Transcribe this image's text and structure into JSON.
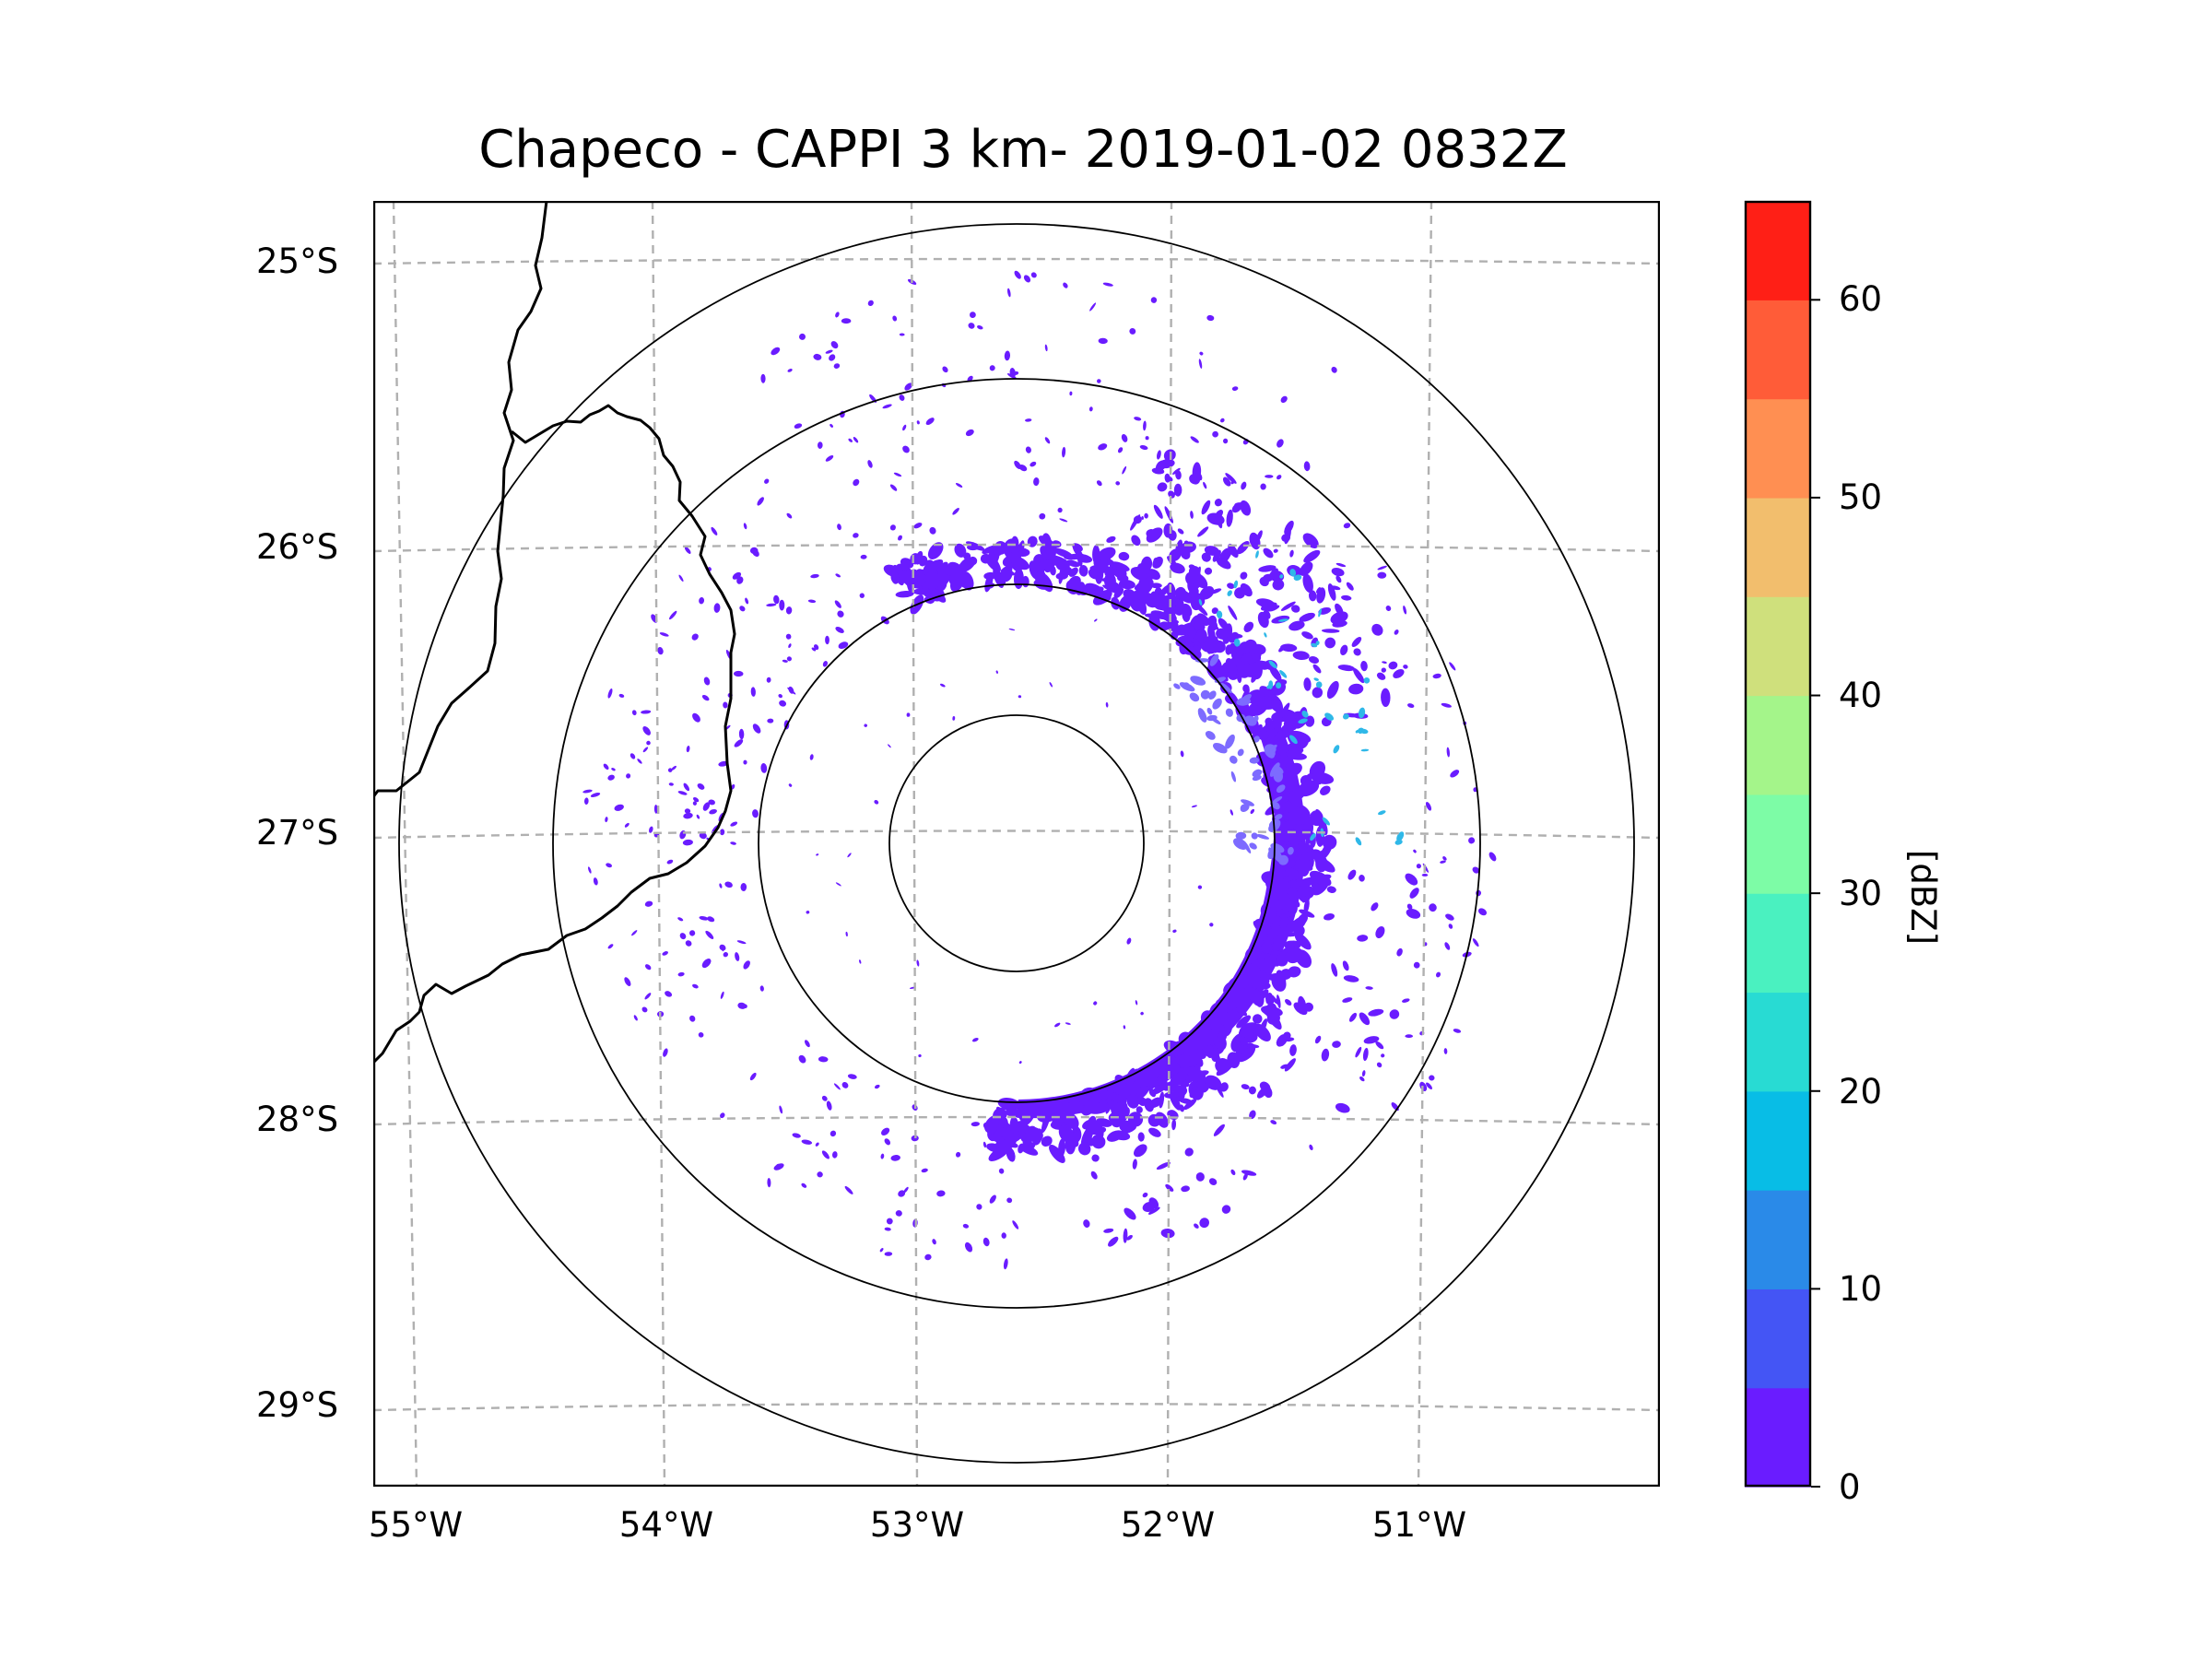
{
  "title": "Chapeco - CAPPI 3 km- 2019-01-02 0832Z",
  "lat_labels": [
    "25°S",
    "26°S",
    "27°S",
    "28°S",
    "29°S"
  ],
  "lon_labels": [
    "55°W",
    "54°W",
    "53°W",
    "52°W",
    "51°W"
  ],
  "colorbar": {
    "label": "[dBZ]",
    "tick_labels": [
      "0",
      "10",
      "20",
      "30",
      "40",
      "50",
      "60"
    ],
    "min": 0,
    "max": 65,
    "step": 5,
    "colors": [
      "#6a1cff",
      "#4455f5",
      "#2a8ae8",
      "#08bde6",
      "#28dbd3",
      "#4af1c0",
      "#7dfca6",
      "#a4f58a",
      "#cfe07c",
      "#f2be6d",
      "#ff8f52",
      "#ff5c38",
      "#ff1f16"
    ]
  },
  "radar": {
    "site": "Chapeco",
    "product": "CAPPI 3 km",
    "center_lon": -52.6,
    "center_lat": -27.03,
    "range_rings_km": [
      50,
      100,
      200,
      250
    ],
    "echo_color": "#6a1cff",
    "echo_light_color": "#7d6bff",
    "echo_cyan_color": "#2fb8e8"
  },
  "map": {
    "lon_range": [
      -55.2,
      -50.05
    ],
    "lat_range": [
      -29.3,
      -24.8
    ],
    "border_color": "#000000",
    "grid_color": "#b0b0b0"
  }
}
